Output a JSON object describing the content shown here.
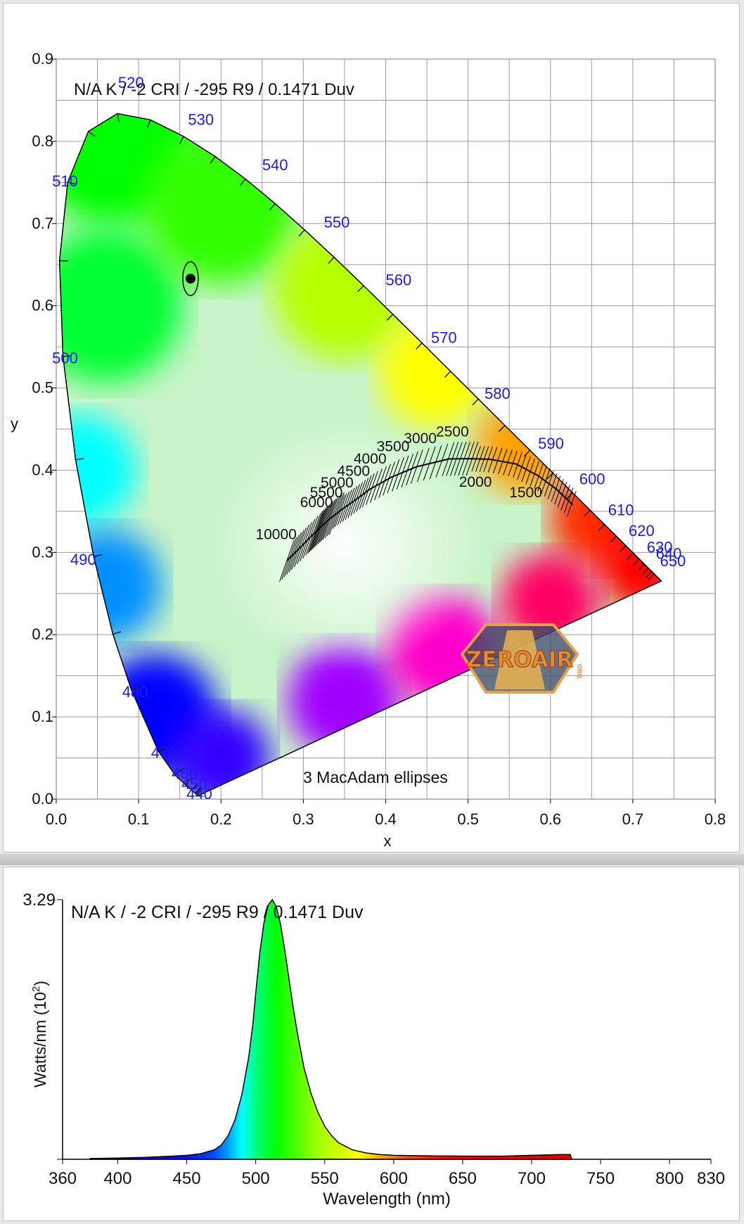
{
  "chart_data": [
    {
      "type": "scatter",
      "title": "N/A K / -2 CRI / -295 R9 / 0.1471 Duv",
      "xlabel": "x",
      "ylabel": "y",
      "xlim": [
        0.0,
        0.8
      ],
      "ylim": [
        0.0,
        0.9
      ],
      "x_ticks": [
        "0.0",
        "0.1",
        "0.2",
        "0.3",
        "0.4",
        "0.5",
        "0.6",
        "0.7",
        "0.8"
      ],
      "y_ticks": [
        "0.0",
        "0.1",
        "0.2",
        "0.3",
        "0.4",
        "0.5",
        "0.6",
        "0.7",
        "0.8",
        "0.9"
      ],
      "grid": true,
      "background": "CIE 1931 chromaticity diagram",
      "measured_point": {
        "x": 0.163,
        "y": 0.633
      },
      "ellipse_note": "3  MacAdam ellipses",
      "spectral_locus_labels": [
        {
          "nm": "440",
          "x": 0.158,
          "y": 0.0
        },
        {
          "nm": "450",
          "x": 0.152,
          "y": 0.012
        },
        {
          "nm": "460",
          "x": 0.14,
          "y": 0.025
        },
        {
          "nm": "470",
          "x": 0.115,
          "y": 0.05
        },
        {
          "nm": "480",
          "x": 0.08,
          "y": 0.124
        },
        {
          "nm": "490",
          "x": 0.017,
          "y": 0.285
        },
        {
          "nm": "500",
          "x": -0.005,
          "y": 0.53
        },
        {
          "nm": "510",
          "x": -0.005,
          "y": 0.745
        },
        {
          "nm": "520",
          "x": 0.075,
          "y": 0.865
        },
        {
          "nm": "530",
          "x": 0.16,
          "y": 0.82
        },
        {
          "nm": "540",
          "x": 0.25,
          "y": 0.765
        },
        {
          "nm": "550",
          "x": 0.325,
          "y": 0.695
        },
        {
          "nm": "560",
          "x": 0.4,
          "y": 0.625
        },
        {
          "nm": "570",
          "x": 0.455,
          "y": 0.555
        },
        {
          "nm": "580",
          "x": 0.52,
          "y": 0.487
        },
        {
          "nm": "590",
          "x": 0.585,
          "y": 0.426
        },
        {
          "nm": "600",
          "x": 0.635,
          "y": 0.383
        },
        {
          "nm": "610",
          "x": 0.67,
          "y": 0.345
        },
        {
          "nm": "620",
          "x": 0.695,
          "y": 0.32
        },
        {
          "nm": "630",
          "x": 0.717,
          "y": 0.3
        },
        {
          "nm": "640",
          "x": 0.728,
          "y": 0.292
        },
        {
          "nm": "650",
          "x": 0.733,
          "y": 0.283
        }
      ],
      "planckian_labels": [
        {
          "cct": "10000",
          "x": 0.242,
          "y": 0.316
        },
        {
          "cct": "6000",
          "x": 0.296,
          "y": 0.355
        },
        {
          "cct": "5500",
          "x": 0.308,
          "y": 0.367
        },
        {
          "cct": "5000",
          "x": 0.321,
          "y": 0.379
        },
        {
          "cct": "4500",
          "x": 0.341,
          "y": 0.393
        },
        {
          "cct": "4000",
          "x": 0.361,
          "y": 0.408
        },
        {
          "cct": "3500",
          "x": 0.389,
          "y": 0.423
        },
        {
          "cct": "3000",
          "x": 0.422,
          "y": 0.433
        },
        {
          "cct": "2500",
          "x": 0.461,
          "y": 0.441
        },
        {
          "cct": "2000",
          "x": 0.489,
          "y": 0.38
        },
        {
          "cct": "1500",
          "x": 0.55,
          "y": 0.367
        }
      ]
    },
    {
      "type": "area",
      "title": "N/A K / -2 CRI / -295 R9 / 0.1471 Duv",
      "xlabel": "Wavelength (nm)",
      "ylabel": "Watts/nm (10",
      "ylabel_sup": "2",
      "ylabel_close": ")",
      "xlim": [
        360,
        830
      ],
      "ylim": [
        0,
        3.29
      ],
      "x_ticks": [
        "360",
        "400",
        "450",
        "500",
        "550",
        "600",
        "650",
        "700",
        "750",
        "800",
        "830"
      ],
      "y_ticks": [
        "3.29"
      ],
      "x": [
        380,
        400,
        420,
        440,
        450,
        460,
        470,
        475,
        480,
        485,
        490,
        495,
        498,
        500,
        503,
        506,
        509,
        512,
        515,
        518,
        521,
        524,
        527,
        530,
        535,
        540,
        545,
        550,
        555,
        560,
        570,
        580,
        590,
        600,
        620,
        650,
        680,
        700,
        720,
        728,
        729
      ],
      "values": [
        0.01,
        0.015,
        0.025,
        0.04,
        0.05,
        0.07,
        0.12,
        0.18,
        0.3,
        0.5,
        0.82,
        1.3,
        1.72,
        2.1,
        2.62,
        3.0,
        3.22,
        3.29,
        3.2,
        2.98,
        2.66,
        2.3,
        1.94,
        1.62,
        1.16,
        0.84,
        0.6,
        0.42,
        0.3,
        0.21,
        0.12,
        0.08,
        0.06,
        0.05,
        0.045,
        0.04,
        0.04,
        0.05,
        0.06,
        0.06,
        0.0
      ]
    }
  ],
  "watermark": {
    "text": "ZEROAIR",
    "suffix": "ORG"
  }
}
